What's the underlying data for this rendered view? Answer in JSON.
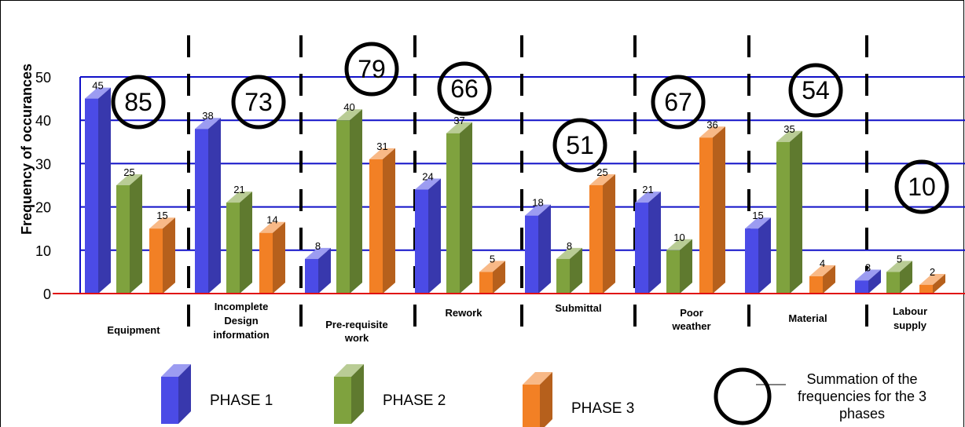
{
  "chart_data": {
    "type": "bar",
    "ylabel": "Frequency of occurances",
    "ylim": [
      0,
      50
    ],
    "yticks": [
      "0",
      "10",
      "20",
      "30",
      "40",
      "50"
    ],
    "categories": [
      "Equipment",
      "Incomplete Design information",
      "Pre-requisite work",
      "Rework",
      "Submittal",
      "Poor weather",
      "Material",
      "Labour supply"
    ],
    "category_lines": [
      [
        "Equipment"
      ],
      [
        "Incomplete",
        "Design",
        "information"
      ],
      [
        "Pre-requisite",
        "work"
      ],
      [
        "Rework"
      ],
      [
        "Submittal"
      ],
      [
        "Poor",
        "weather"
      ],
      [
        "Material"
      ],
      [
        "Labour",
        "supply"
      ]
    ],
    "series": [
      {
        "name": "PHASE 1",
        "color": "#4b4be6",
        "values": [
          45,
          38,
          8,
          24,
          18,
          21,
          15,
          3
        ]
      },
      {
        "name": "PHASE 2",
        "color": "#7fa23e",
        "values": [
          25,
          21,
          40,
          37,
          8,
          10,
          35,
          5
        ]
      },
      {
        "name": "PHASE 3",
        "color": "#f28025",
        "values": [
          15,
          14,
          31,
          5,
          25,
          36,
          4,
          2
        ]
      }
    ],
    "totals": [
      85,
      73,
      79,
      66,
      51,
      67,
      54,
      10
    ],
    "totals_legend": "Summation of the frequencies for the 3 phases",
    "grid": true,
    "gridline_color": "#1010c8",
    "baseline_color": "#e01010",
    "legend_position": "bottom"
  }
}
